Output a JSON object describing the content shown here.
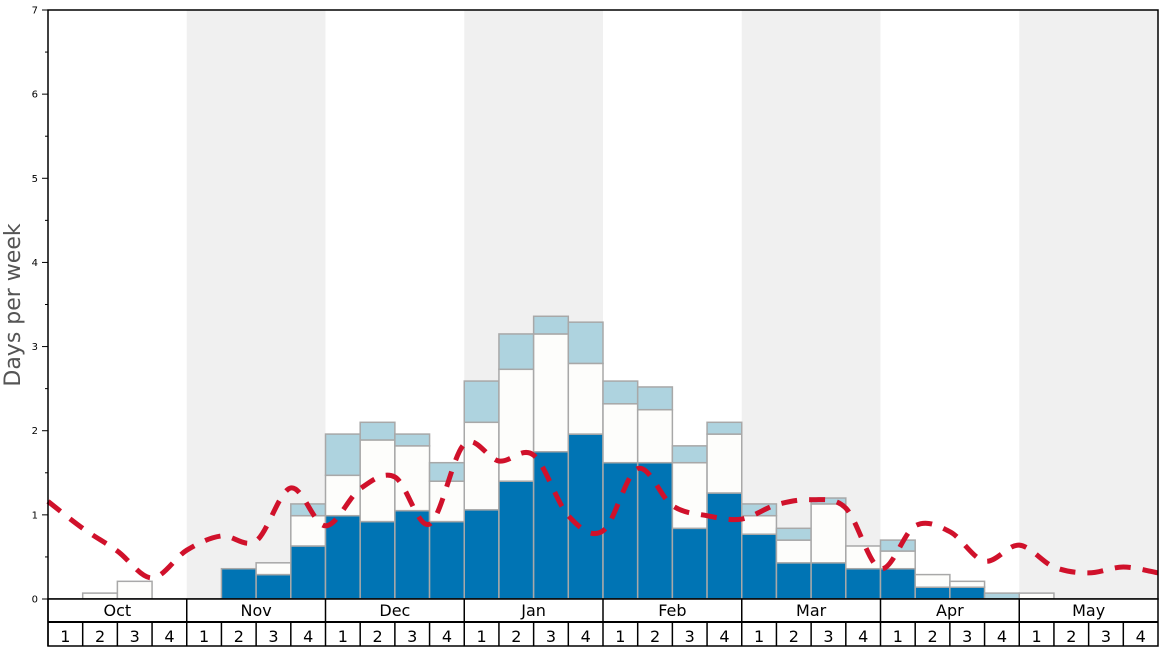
{
  "chart_data": {
    "type": "bar",
    "stacked": true,
    "ylabel": "Days per week",
    "ylim": [
      0,
      7
    ],
    "yticks": [
      "0",
      "1",
      "2",
      "3",
      "4",
      "5",
      "6",
      "7"
    ],
    "months": [
      "Oct",
      "Nov",
      "Dec",
      "Jan",
      "Feb",
      "Mar",
      "Apr",
      "May"
    ],
    "week_labels": [
      "1",
      "2",
      "3",
      "4"
    ],
    "series": [
      {
        "name": "dark",
        "color": "#0074b4",
        "values": [
          0,
          0,
          0,
          0,
          0,
          0.36,
          0.29,
          0.63,
          0.99,
          0.92,
          1.05,
          0.92,
          1.06,
          1.4,
          1.75,
          1.96,
          1.62,
          1.62,
          0.84,
          1.26,
          0.77,
          0.43,
          0.43,
          0.36,
          0.36,
          0.14,
          0.14,
          0,
          0,
          0,
          0,
          0
        ]
      },
      {
        "name": "white",
        "color": "#fdfdfb",
        "values": [
          0,
          0.07,
          0.21,
          0,
          0,
          0,
          0.14,
          0.36,
          0.48,
          0.97,
          0.77,
          0.48,
          1.04,
          1.33,
          1.4,
          0.84,
          0.7,
          0.63,
          0.78,
          0.7,
          0.22,
          0.27,
          0.7,
          0.27,
          0.21,
          0.15,
          0.07,
          0,
          0.07,
          0,
          0,
          0
        ]
      },
      {
        "name": "light",
        "color": "#aed3df",
        "values": [
          0,
          0,
          0,
          0,
          0,
          0,
          0,
          0.14,
          0.49,
          0.21,
          0.14,
          0.22,
          0.49,
          0.42,
          0.21,
          0.49,
          0.27,
          0.27,
          0.2,
          0.14,
          0.14,
          0.14,
          0.07,
          0,
          0.13,
          0,
          0,
          0.07,
          0,
          0,
          0,
          0
        ]
      }
    ],
    "line": {
      "name": "average",
      "color": "#d0112b",
      "style": "dashed",
      "values": [
        1.16,
        0.84,
        0.57,
        0.25,
        0.58,
        0.75,
        0.69,
        1.32,
        0.87,
        1.31,
        1.45,
        0.89,
        1.84,
        1.64,
        1.71,
        0.99,
        0.81,
        1.55,
        1.11,
        0.99,
        0.95,
        1.12,
        1.18,
        1.08,
        0.36,
        0.87,
        0.8,
        0.45,
        0.64,
        0.38,
        0.31,
        0.38,
        0.31
      ]
    },
    "shaded_months": [
      "Nov",
      "Jan",
      "Mar",
      "May"
    ],
    "grid": false
  }
}
